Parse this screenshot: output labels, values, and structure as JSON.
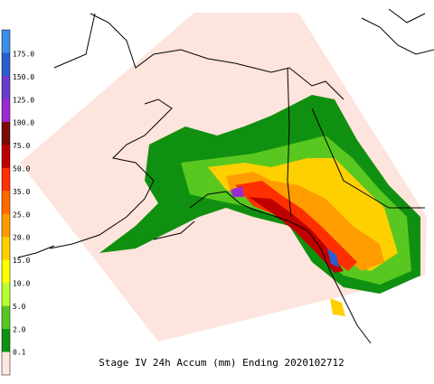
{
  "legend": {
    "labels": [
      "175.0",
      "150.0",
      "125.0",
      "100.0",
      "75.0",
      "50.0",
      "35.0",
      "25.0",
      "20.0",
      "15.0",
      "10.0",
      "5.0",
      "2.0",
      "0.1"
    ],
    "colors": [
      "#3a8ee8",
      "#2a5fd0",
      "#6a3cc8",
      "#9a2ad0",
      "#7a0a0a",
      "#c00000",
      "#ff3000",
      "#ff6a00",
      "#ff9c00",
      "#ffd000",
      "#ffff00",
      "#b8ff30",
      "#58c820",
      "#109010",
      "#ffe6e0"
    ]
  },
  "footer": {
    "title": "Stage IV 24h Accum (mm) Ending 2020102712"
  }
}
